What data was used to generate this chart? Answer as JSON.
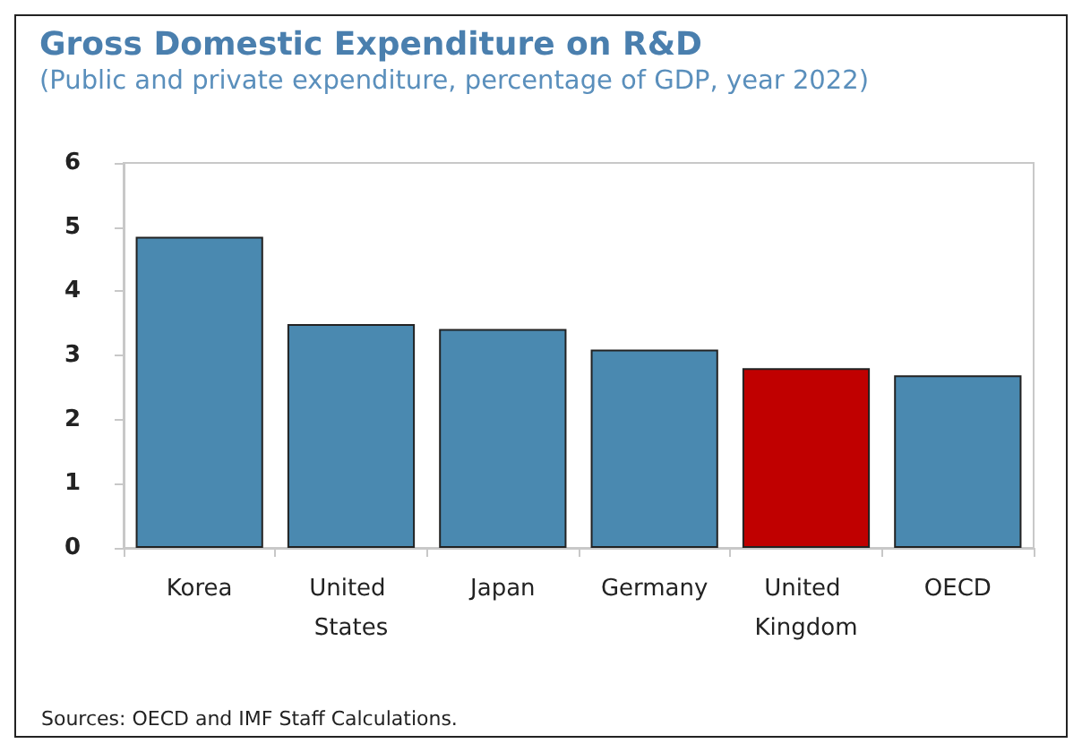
{
  "chart_data": {
    "type": "bar",
    "title": "Gross Domestic Expenditure on R&D",
    "subtitle": "(Public and private expenditure, percentage of GDP, year 2022)",
    "categories": [
      "Korea",
      "United States",
      "Japan",
      "Germany",
      "United Kingdom",
      "OECD"
    ],
    "values": [
      4.85,
      3.49,
      3.41,
      3.09,
      2.8,
      2.69
    ],
    "colors": [
      "#4a89b0",
      "#4a89b0",
      "#4a89b0",
      "#4a89b0",
      "#c00000",
      "#4a89b0"
    ],
    "ylim": [
      0,
      6
    ],
    "yticks": [
      0,
      1,
      2,
      3,
      4,
      5,
      6
    ],
    "grid": false,
    "annotations": [
      "Sources: OECD and IMF Staff Calculations."
    ]
  }
}
